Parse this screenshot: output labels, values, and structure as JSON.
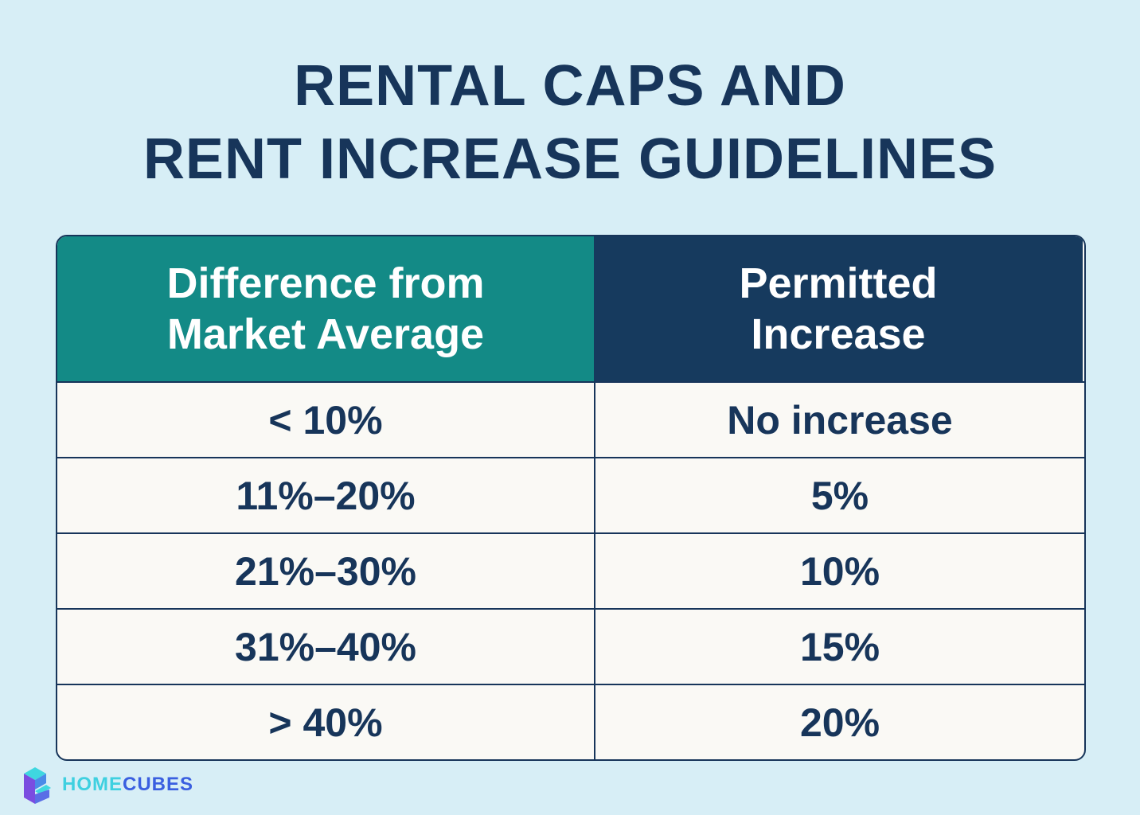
{
  "header": {
    "title_lines": [
      "RENTAL CAPS AND",
      "RENT INCREASE GUIDELINES"
    ]
  },
  "table": {
    "columns": [
      "Difference from Market Average",
      "Permitted Increase"
    ],
    "rows": [
      [
        "< 10%",
        "No increase"
      ],
      [
        "11%–20%",
        "5%"
      ],
      [
        "21%–30%",
        "10%"
      ],
      [
        "31%–40%",
        "15%"
      ],
      [
        "> 40%",
        "20%"
      ]
    ]
  },
  "brand": {
    "part1": "HOME",
    "part2": "CUBES"
  }
}
